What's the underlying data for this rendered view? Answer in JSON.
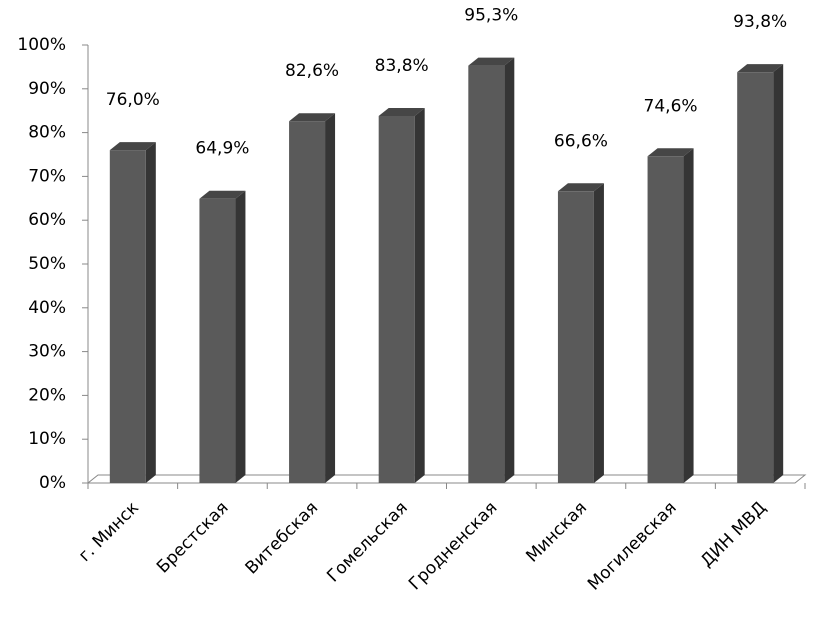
{
  "chart_data": {
    "type": "bar3d",
    "categories": [
      "г. Минск",
      "Брестская",
      "Витебская",
      "Гомельская",
      "Гродненская",
      "Минская",
      "Могилевская",
      "ДИН МВД"
    ],
    "values": [
      76.0,
      64.9,
      82.6,
      83.8,
      95.3,
      66.6,
      74.6,
      93.8
    ],
    "value_labels": [
      "76,0%",
      "64,9%",
      "82,6%",
      "83,8%",
      "95,3%",
      "66,6%",
      "74,6%",
      "93,8%"
    ],
    "color": "#5a5a5a",
    "ylim": [
      0,
      100
    ],
    "yticks": [
      {
        "value": 0,
        "label": "0%"
      },
      {
        "value": 10,
        "label": "10%"
      },
      {
        "value": 20,
        "label": "20%"
      },
      {
        "value": 30,
        "label": "30%"
      },
      {
        "value": 40,
        "label": "40%"
      },
      {
        "value": 50,
        "label": "50%"
      },
      {
        "value": 60,
        "label": "60%"
      },
      {
        "value": 70,
        "label": "70%"
      },
      {
        "value": 80,
        "label": "80%"
      },
      {
        "value": 90,
        "label": "90%"
      },
      {
        "value": 100,
        "label": "100%"
      }
    ],
    "grid": false
  }
}
